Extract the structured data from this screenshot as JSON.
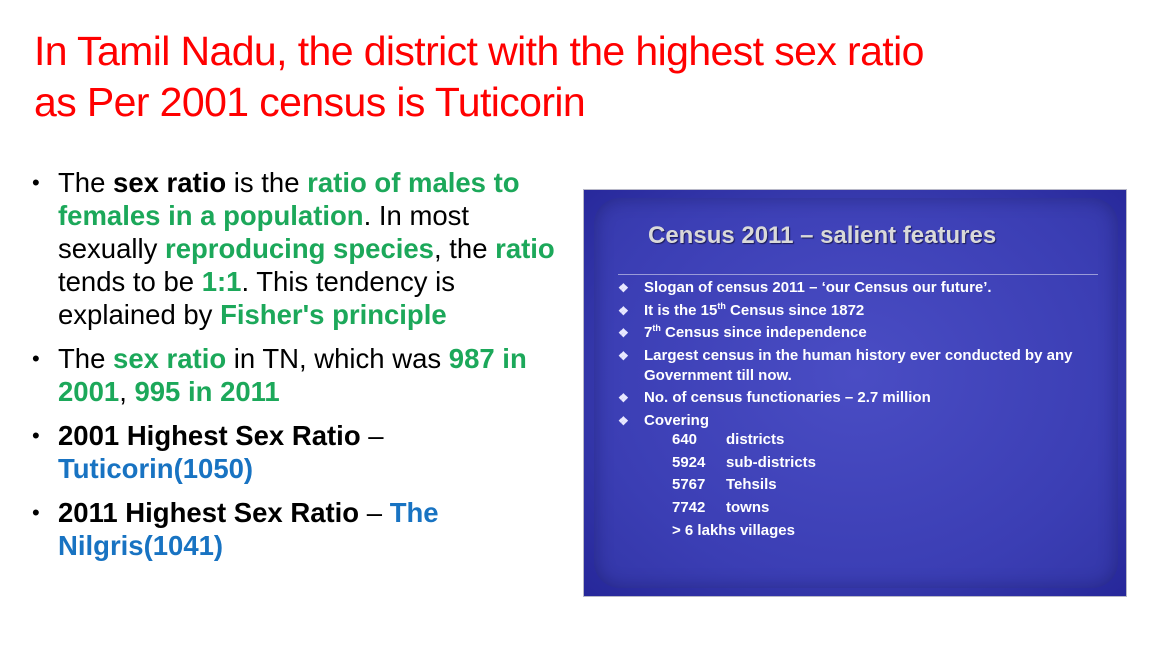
{
  "title": {
    "line1": "In Tamil Nadu, the district with the highest sex ratio",
    "line2": "as Per 2001 census is Tuticorin"
  },
  "bullet_glyph": "•",
  "bullets": [
    {
      "segments": [
        "The ",
        "sex ratio",
        " is the ",
        "ratio of males to females in a population",
        ". In most sexually ",
        "reproducing species",
        ", the ",
        "ratio",
        " tends to be ",
        "1:1",
        ". This tendency is explained by ",
        "Fisher's principle"
      ]
    },
    {
      "segments": [
        "The ",
        "sex ratio",
        " in TN, which was ",
        "987 in 2001",
        ", ",
        "995 in 2011"
      ]
    },
    {
      "segments": [
        "2001 Highest Sex Ratio",
        " – ",
        "Tuticorin(1050)"
      ]
    },
    {
      "segments": [
        "2011 Highest Sex Ratio",
        " – ",
        "The Nilgris(1041)"
      ]
    }
  ],
  "slide": {
    "title": "Census 2011 – salient features",
    "item_glyph": "❖",
    "items": [
      "Slogan of census 2011 – ‘our Census our future’.",
      [
        "It is the 15",
        "th",
        " Census since 1872"
      ],
      [
        "7",
        "th",
        " Census since independence"
      ],
      "Largest census in the human history ever conducted by any Government till now.",
      "No. of census functionaries – 2.7 million",
      "Covering"
    ],
    "covering": [
      {
        "num": "640",
        "label": "districts"
      },
      {
        "num": "5924",
        "label": "sub-districts"
      },
      {
        "num": "5767",
        "label": "Tehsils"
      },
      {
        "num": "7742",
        "label": "towns"
      }
    ],
    "villages": "> 6 lakhs villages"
  },
  "colors": {
    "title": "#ff0000",
    "highlight_green": "#1ca85a",
    "highlight_blue": "#1873c2",
    "slide_bg": "#3b3eb4"
  }
}
